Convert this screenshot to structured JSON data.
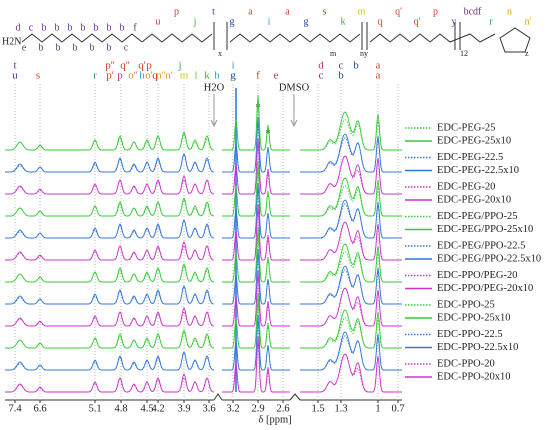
{
  "structure": {
    "amine": "H2N",
    "chain_top": [
      "d",
      "c",
      "b",
      "b",
      "b",
      "b",
      "b",
      "b",
      "b",
      "f"
    ],
    "chain_bottom": [
      "e",
      "b",
      "b",
      "b",
      "b",
      "b",
      "c"
    ],
    "groups": [
      "u",
      "p",
      "j",
      "t",
      "g",
      "a",
      "i",
      "a",
      "g",
      "s",
      "k",
      "m",
      "q",
      "q'",
      "q'",
      "p",
      "y",
      "bcdf",
      "r",
      "n",
      "n'"
    ],
    "subscripts": [
      "x",
      "m",
      "n",
      "y",
      "12",
      "z"
    ]
  },
  "peak_labels": {
    "top": [
      {
        "text": "t",
        "color": "#6a2c8a"
      },
      {
        "text": "p''",
        "color": "#d4402a"
      },
      {
        "text": "q''",
        "color": "#d4402a"
      },
      {
        "text": "q'",
        "color": "#d4402a"
      },
      {
        "text": "p",
        "color": "#d4402a"
      },
      {
        "text": "j",
        "color": "#33b04a"
      },
      {
        "text": "i",
        "color": "#3aa0d8"
      },
      {
        "text": "d",
        "color": "#c0307a"
      },
      {
        "text": "c",
        "color": "#6a2c8a"
      },
      {
        "text": "b",
        "color": "#1f4aa0"
      },
      {
        "text": "a",
        "color": "#d4402a"
      }
    ],
    "bottom": [
      {
        "text": "u",
        "color": "#6a2c8a"
      },
      {
        "text": "s",
        "color": "#d4402a"
      },
      {
        "text": "r",
        "color": "#2a8a8a"
      },
      {
        "text": "p'",
        "color": "#d4402a"
      },
      {
        "text": "p",
        "color": "#c0307a"
      },
      {
        "text": "o''",
        "color": "#e07a20"
      },
      {
        "text": "h",
        "color": "#3aa0d8"
      },
      {
        "text": "o'",
        "color": "#e07a20"
      },
      {
        "text": "q",
        "color": "#d4402a"
      },
      {
        "text": "n''",
        "color": "#e0a020"
      },
      {
        "text": "n'",
        "color": "#e0a020"
      },
      {
        "text": "m",
        "color": "#c8c820"
      },
      {
        "text": "l",
        "color": "#66cc44"
      },
      {
        "text": "k",
        "color": "#33b04a"
      },
      {
        "text": "h",
        "color": "#3aa0d8"
      },
      {
        "text": "g",
        "color": "#1f4aa0"
      },
      {
        "text": "f",
        "color": "#d4402a"
      },
      {
        "text": "e",
        "color": "#c0307a"
      },
      {
        "text": "c",
        "color": "#6a2c8a"
      },
      {
        "text": "b",
        "color": "#1f4aa0"
      },
      {
        "text": "a",
        "color": "#d4402a"
      }
    ]
  },
  "annotations": {
    "water": "H2O",
    "dmso": "DMSO",
    "star": "*"
  },
  "x_axis": {
    "label": "δ [ppm]",
    "ticks": [
      7.4,
      6.6,
      5.1,
      4.8,
      4.5,
      4.2,
      3.9,
      3.6,
      3.2,
      2.9,
      2.6,
      1.5,
      1.3,
      1,
      0.7
    ]
  },
  "legend": [
    {
      "name": "EDC-PEG-25",
      "color": "#33cc33",
      "style": "dotted"
    },
    {
      "name": "EDC-PEG-25x10",
      "color": "#33cc33",
      "style": "solid"
    },
    {
      "name": "EDC-PEG-22.5",
      "color": "#3377dd",
      "style": "dotted"
    },
    {
      "name": "EDC-PEG-22.5x10",
      "color": "#3377dd",
      "style": "solid"
    },
    {
      "name": "EDC-PEG-20",
      "color": "#cc33cc",
      "style": "dotted"
    },
    {
      "name": "EDC-PEG-20x10",
      "color": "#cc33cc",
      "style": "solid"
    },
    {
      "name": "EDC-PEG/PPO-25",
      "color": "#33cc33",
      "style": "dotted"
    },
    {
      "name": "EDC-PEG/PPO-25x10",
      "color": "#33cc33",
      "style": "solid"
    },
    {
      "name": "EDC-PEG/PPO-22.5",
      "color": "#3377dd",
      "style": "dotted"
    },
    {
      "name": "EDC-PEG/PPO-22.5x10",
      "color": "#3377dd",
      "style": "solid"
    },
    {
      "name": "EDC-PPO/PEG-20",
      "color": "#cc33cc",
      "style": "dotted"
    },
    {
      "name": "EDC-PPO/PEG-20x10",
      "color": "#cc33cc",
      "style": "solid"
    },
    {
      "name": "EDC-PPO-25",
      "color": "#33cc33",
      "style": "dotted"
    },
    {
      "name": "EDC-PPO-25x10",
      "color": "#33cc33",
      "style": "solid"
    },
    {
      "name": "EDC-PPO-22.5",
      "color": "#3377dd",
      "style": "dotted"
    },
    {
      "name": "EDC-PPO-22.5x10",
      "color": "#3377dd",
      "style": "solid"
    },
    {
      "name": "EDC-PPO-20",
      "color": "#cc33cc",
      "style": "dotted"
    },
    {
      "name": "EDC-PPO-20x10",
      "color": "#cc33cc",
      "style": "solid"
    }
  ]
}
